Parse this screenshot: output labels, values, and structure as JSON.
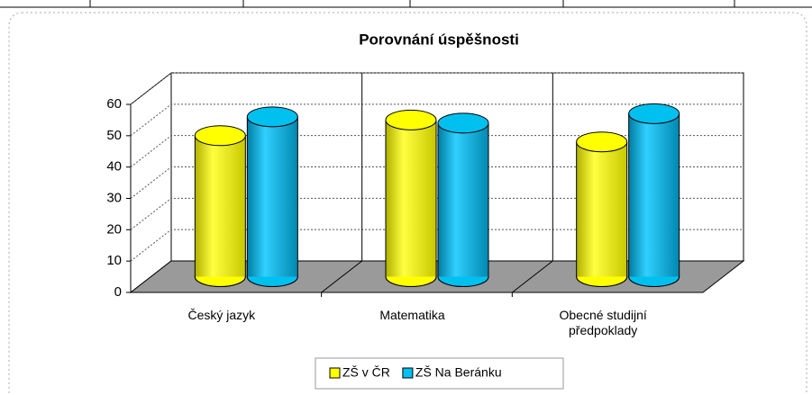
{
  "chart_data": {
    "type": "bar3d",
    "title": "Porovnání úspěšnosti",
    "categories": [
      "Český jazyk",
      "Matematika",
      "Obecné studijní předpoklady"
    ],
    "series": [
      {
        "name": "ZŠ v ČR",
        "color": "#ffff00",
        "values": [
          45,
          50,
          43
        ]
      },
      {
        "name": "ZŠ Na Beránku",
        "color": "#00c0f0",
        "values": [
          51,
          49,
          52
        ]
      }
    ],
    "ylim": [
      0,
      60
    ],
    "yticks": [
      0,
      10,
      20,
      30,
      40,
      50,
      60
    ],
    "grid": true,
    "legend": "bottom"
  }
}
